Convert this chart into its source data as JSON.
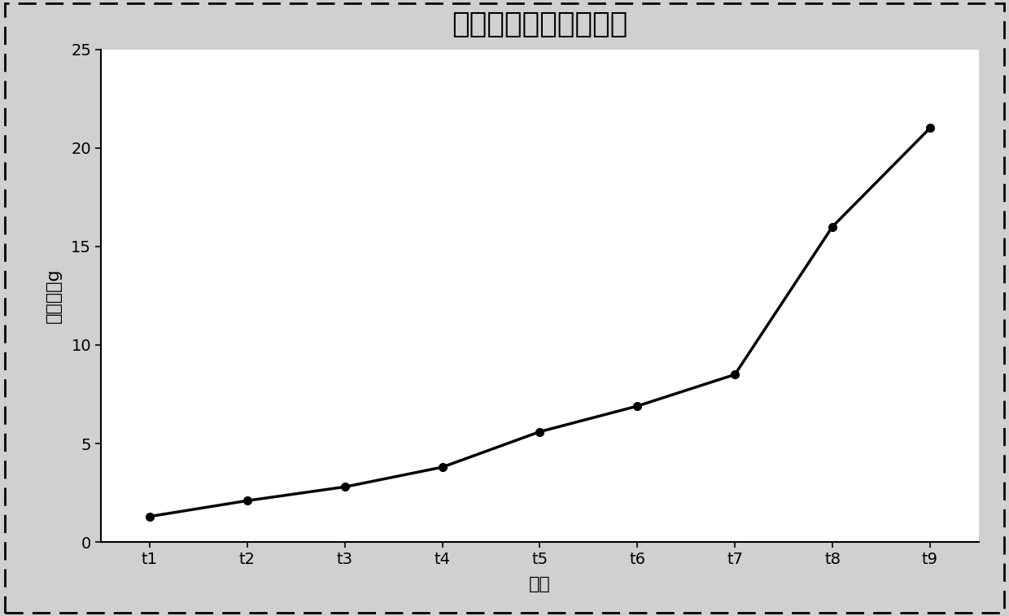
{
  "title": "不同出口出沙量对比图",
  "xlabel": "出口",
  "ylabel": "出沙量，g",
  "categories": [
    "t1",
    "t2",
    "t3",
    "t4",
    "t5",
    "t6",
    "t7",
    "t8",
    "t9"
  ],
  "values": [
    1.3,
    2.1,
    2.8,
    3.8,
    5.6,
    6.9,
    8.5,
    16.0,
    21.0
  ],
  "ylim": [
    0,
    25
  ],
  "yticks": [
    0,
    5,
    10,
    15,
    20,
    25
  ],
  "line_color": "#000000",
  "marker": "o",
  "marker_size": 7,
  "line_width": 2.5,
  "background_color": "#ffffff",
  "border_color": "#000000",
  "title_fontsize": 26,
  "axis_label_fontsize": 16,
  "tick_fontsize": 14
}
